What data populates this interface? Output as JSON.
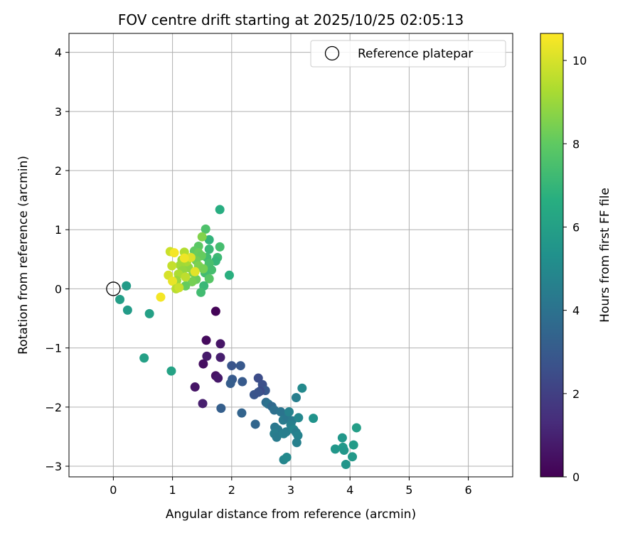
{
  "chart_data": {
    "type": "scatter",
    "title": "FOV centre drift starting at 2025/10/25 02:05:13",
    "xlabel": "Angular distance from reference (arcmin)",
    "ylabel": "Rotation from reference (arcmin)",
    "xlim": [
      -0.75,
      6.75
    ],
    "ylim": [
      -3.18,
      4.32
    ],
    "xticks": [
      "0",
      "1",
      "2",
      "3",
      "4",
      "5",
      "6"
    ],
    "yticks": [
      "−3",
      "−2",
      "−1",
      "0",
      "1",
      "2",
      "3",
      "4"
    ],
    "grid": true,
    "legend": {
      "position": "upper-right",
      "entries": [
        "Reference platepar"
      ]
    },
    "reference_point": {
      "x": 0,
      "y": 0,
      "label": "Reference platepar"
    },
    "colorbar": {
      "label": "Hours from first FF file",
      "range": [
        0,
        10.65
      ],
      "ticks": [
        "0",
        "2",
        "4",
        "6",
        "8",
        "10"
      ],
      "colormap": "viridis"
    },
    "points": [
      {
        "x": 1.73,
        "y": -0.38,
        "t": 0.1
      },
      {
        "x": 1.57,
        "y": -0.87,
        "t": 0.3
      },
      {
        "x": 1.81,
        "y": -0.93,
        "t": 0.6
      },
      {
        "x": 1.58,
        "y": -1.14,
        "t": 0.8
      },
      {
        "x": 1.81,
        "y": -1.16,
        "t": 0.9
      },
      {
        "x": 1.52,
        "y": -1.27,
        "t": 0.4
      },
      {
        "x": 1.73,
        "y": -1.47,
        "t": 0.5
      },
      {
        "x": 1.77,
        "y": -1.51,
        "t": 0.7
      },
      {
        "x": 1.38,
        "y": -1.66,
        "t": 0.6
      },
      {
        "x": 1.51,
        "y": -1.94,
        "t": 0.9
      },
      {
        "x": 2.0,
        "y": -1.3,
        "t": 2.8
      },
      {
        "x": 2.15,
        "y": -1.3,
        "t": 2.9
      },
      {
        "x": 2.01,
        "y": -1.53,
        "t": 3.0
      },
      {
        "x": 1.98,
        "y": -1.6,
        "t": 3.1
      },
      {
        "x": 2.18,
        "y": -1.57,
        "t": 3.0
      },
      {
        "x": 2.45,
        "y": -1.51,
        "t": 2.5
      },
      {
        "x": 2.52,
        "y": -1.62,
        "t": 2.6
      },
      {
        "x": 2.57,
        "y": -1.72,
        "t": 2.9
      },
      {
        "x": 2.48,
        "y": -1.73,
        "t": 2.4
      },
      {
        "x": 2.38,
        "y": -1.79,
        "t": 2.8
      },
      {
        "x": 2.45,
        "y": -1.75,
        "t": 2.7
      },
      {
        "x": 1.82,
        "y": -2.02,
        "t": 3.2
      },
      {
        "x": 2.17,
        "y": -2.1,
        "t": 3.4
      },
      {
        "x": 2.4,
        "y": -2.29,
        "t": 3.5
      },
      {
        "x": 2.58,
        "y": -1.92,
        "t": 3.8
      },
      {
        "x": 2.62,
        "y": -1.95,
        "t": 4.0
      },
      {
        "x": 2.68,
        "y": -1.99,
        "t": 3.6
      },
      {
        "x": 2.72,
        "y": -2.05,
        "t": 3.9
      },
      {
        "x": 2.83,
        "y": -2.08,
        "t": 4.1
      },
      {
        "x": 2.87,
        "y": -2.22,
        "t": 4.4
      },
      {
        "x": 2.73,
        "y": -2.34,
        "t": 4.2
      },
      {
        "x": 2.78,
        "y": -2.38,
        "t": 4.3
      },
      {
        "x": 2.72,
        "y": -2.45,
        "t": 4.5
      },
      {
        "x": 2.76,
        "y": -2.51,
        "t": 4.4
      },
      {
        "x": 2.88,
        "y": -2.45,
        "t": 4.6
      },
      {
        "x": 2.92,
        "y": -2.42,
        "t": 4.5
      },
      {
        "x": 2.94,
        "y": -2.18,
        "t": 4.2
      },
      {
        "x": 2.97,
        "y": -2.08,
        "t": 4.7
      },
      {
        "x": 3.02,
        "y": -2.23,
        "t": 4.4
      },
      {
        "x": 3.0,
        "y": -2.3,
        "t": 4.6
      },
      {
        "x": 3.05,
        "y": -2.38,
        "t": 4.8
      },
      {
        "x": 3.09,
        "y": -2.43,
        "t": 4.5
      },
      {
        "x": 3.12,
        "y": -2.48,
        "t": 4.7
      },
      {
        "x": 3.1,
        "y": -2.6,
        "t": 4.6
      },
      {
        "x": 3.13,
        "y": -2.18,
        "t": 4.9
      },
      {
        "x": 3.09,
        "y": -1.84,
        "t": 4.5
      },
      {
        "x": 3.19,
        "y": -1.68,
        "t": 5.0
      },
      {
        "x": 2.88,
        "y": -2.89,
        "t": 4.8
      },
      {
        "x": 2.93,
        "y": -2.85,
        "t": 5.0
      },
      {
        "x": 3.38,
        "y": -2.19,
        "t": 5.4
      },
      {
        "x": 3.75,
        "y": -2.71,
        "t": 5.6
      },
      {
        "x": 3.87,
        "y": -2.52,
        "t": 5.6
      },
      {
        "x": 3.88,
        "y": -2.68,
        "t": 5.7
      },
      {
        "x": 3.9,
        "y": -2.73,
        "t": 5.6
      },
      {
        "x": 3.93,
        "y": -2.97,
        "t": 5.5
      },
      {
        "x": 4.06,
        "y": -2.64,
        "t": 5.8
      },
      {
        "x": 4.04,
        "y": -2.84,
        "t": 5.7
      },
      {
        "x": 4.11,
        "y": -2.35,
        "t": 5.9
      },
      {
        "x": 0.22,
        "y": 0.05,
        "t": 5.8
      },
      {
        "x": 0.11,
        "y": -0.18,
        "t": 5.9
      },
      {
        "x": 0.24,
        "y": -0.36,
        "t": 5.8
      },
      {
        "x": 0.61,
        "y": -0.42,
        "t": 6.0
      },
      {
        "x": 0.52,
        "y": -1.17,
        "t": 6.0
      },
      {
        "x": 0.98,
        "y": -1.39,
        "t": 6.1
      },
      {
        "x": 1.8,
        "y": 1.34,
        "t": 6.6
      },
      {
        "x": 1.96,
        "y": 0.23,
        "t": 6.7
      },
      {
        "x": 1.56,
        "y": 1.01,
        "t": 7.6
      },
      {
        "x": 1.62,
        "y": 0.83,
        "t": 6.9
      },
      {
        "x": 1.8,
        "y": 0.71,
        "t": 7.4
      },
      {
        "x": 1.62,
        "y": 0.67,
        "t": 7.1
      },
      {
        "x": 1.76,
        "y": 0.53,
        "t": 7.2
      },
      {
        "x": 1.58,
        "y": 0.53,
        "t": 7.3
      },
      {
        "x": 1.73,
        "y": 0.47,
        "t": 7.0
      },
      {
        "x": 1.62,
        "y": 0.43,
        "t": 7.5
      },
      {
        "x": 1.66,
        "y": 0.32,
        "t": 7.4
      },
      {
        "x": 1.55,
        "y": 0.27,
        "t": 7.3
      },
      {
        "x": 1.62,
        "y": 0.17,
        "t": 7.8
      },
      {
        "x": 1.53,
        "y": 0.05,
        "t": 7.1
      },
      {
        "x": 1.48,
        "y": -0.06,
        "t": 7.3
      },
      {
        "x": 1.5,
        "y": 0.88,
        "t": 8.6
      },
      {
        "x": 1.44,
        "y": 0.72,
        "t": 7.9
      },
      {
        "x": 1.37,
        "y": 0.64,
        "t": 8.0
      },
      {
        "x": 1.44,
        "y": 0.61,
        "t": 8.2
      },
      {
        "x": 1.49,
        "y": 0.56,
        "t": 8.1
      },
      {
        "x": 1.4,
        "y": 0.48,
        "t": 8.3
      },
      {
        "x": 1.44,
        "y": 0.39,
        "t": 8.5
      },
      {
        "x": 1.52,
        "y": 0.34,
        "t": 8.4
      },
      {
        "x": 1.35,
        "y": 0.27,
        "t": 8.5
      },
      {
        "x": 1.4,
        "y": 0.16,
        "t": 8.2
      },
      {
        "x": 1.33,
        "y": 0.12,
        "t": 8.4
      },
      {
        "x": 1.22,
        "y": 0.05,
        "t": 8.1
      },
      {
        "x": 1.27,
        "y": 0.36,
        "t": 8.8
      },
      {
        "x": 1.2,
        "y": 0.62,
        "t": 9.4
      },
      {
        "x": 1.16,
        "y": 0.49,
        "t": 9.0
      },
      {
        "x": 1.24,
        "y": 0.46,
        "t": 9.2
      },
      {
        "x": 1.13,
        "y": 0.4,
        "t": 9.1
      },
      {
        "x": 1.17,
        "y": 0.31,
        "t": 8.9
      },
      {
        "x": 1.1,
        "y": 0.25,
        "t": 9.3
      },
      {
        "x": 1.22,
        "y": 0.2,
        "t": 9.6
      },
      {
        "x": 1.07,
        "y": 0.14,
        "t": 9.0
      },
      {
        "x": 0.99,
        "y": 0.39,
        "t": 9.7
      },
      {
        "x": 0.96,
        "y": 0.63,
        "t": 9.8
      },
      {
        "x": 1.31,
        "y": 0.53,
        "t": 10.1
      },
      {
        "x": 1.38,
        "y": 0.29,
        "t": 10.2
      },
      {
        "x": 1.2,
        "y": 0.52,
        "t": 10.4
      },
      {
        "x": 1.03,
        "y": 0.61,
        "t": 10.5
      },
      {
        "x": 0.93,
        "y": 0.23,
        "t": 10.0
      },
      {
        "x": 1.0,
        "y": 0.13,
        "t": 10.3
      },
      {
        "x": 1.06,
        "y": 0.0,
        "t": 9.5
      },
      {
        "x": 1.11,
        "y": 0.02,
        "t": 9.8
      },
      {
        "x": 0.8,
        "y": -0.14,
        "t": 10.5
      }
    ]
  }
}
